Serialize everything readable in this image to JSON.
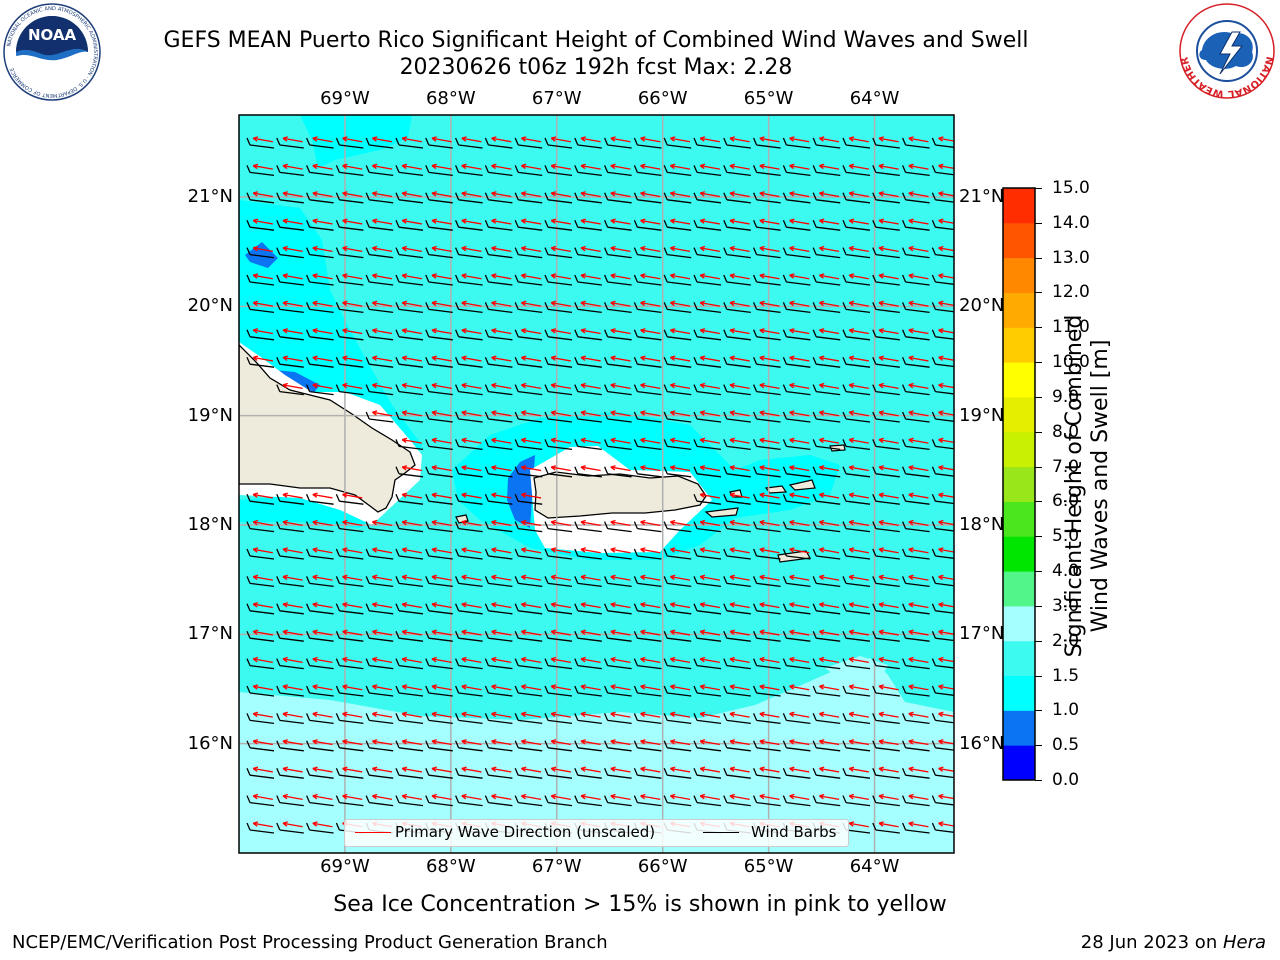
{
  "header": {
    "title_line1": "GEFS MEAN Puerto Rico Significant Height of Combined Wind Waves and Swell",
    "title_line2": "20230626 t06z 192h fcst   Max: 2.28",
    "noaa_logo_text": "NOAA",
    "noaa_ring_text": "NATIONAL OCEANIC AND ATMOSPHERIC ADMINISTRATION · U.S. DEPARTMENT OF COMMERCE",
    "nws_ring_text": "NATIONAL WEATHER SERVICE"
  },
  "map": {
    "lon_labels": [
      "69°W",
      "68°W",
      "67°W",
      "66°W",
      "65°W",
      "64°W"
    ],
    "lat_labels": [
      "21°N",
      "20°N",
      "19°N",
      "18°N",
      "17°N",
      "16°N"
    ],
    "lon_range": [
      -70.0,
      -63.25
    ],
    "lat_range": [
      15.0,
      21.75
    ],
    "wave_direction_deg_from": 100,
    "field_max_m": 2.28
  },
  "legend": {
    "wave_label": "Primary Wave Direction (unscaled)",
    "barb_label": "Wind Barbs",
    "wave_color": "#ff0000",
    "barb_color": "#000000"
  },
  "colorbar": {
    "label_line1": "Significant Height of Combined",
    "label_line2": "Wind Waves and Swell [m]",
    "ticks": [
      "15.0",
      "14.0",
      "13.0",
      "12.0",
      "11.0",
      "10.0",
      "9.0",
      "8.0",
      "7.0",
      "6.0",
      "5.0",
      "4.0",
      "3.0",
      "2.0",
      "1.5",
      "1.0",
      "0.5",
      "0.0"
    ],
    "colors": [
      "#0000ff",
      "#0b74f2",
      "#00ffff",
      "#3cfaf0",
      "#a6ffff",
      "#52f58a",
      "#00e600",
      "#4be61d",
      "#99e61a",
      "#c8f000",
      "#e6ee00",
      "#ffff00",
      "#ffcc00",
      "#ffaa00",
      "#ff8800",
      "#ff5500",
      "#ff2d00",
      "#ff0000"
    ],
    "land_color": "#efebdc",
    "ice_note_color": "#ffffff"
  },
  "footer": {
    "ice_note": "Sea Ice Concentration > 15% is shown in pink to yellow",
    "credit": "NCEP/EMC/Verification Post Processing Product Generation Branch",
    "date": "28 Jun 2023 on ",
    "machine": "Hera"
  }
}
